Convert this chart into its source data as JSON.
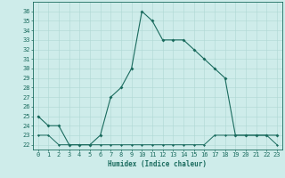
{
  "xlabel": "Humidex (Indice chaleur)",
  "bg_color": "#ceecea",
  "line_color": "#1a6b5e",
  "grid_color": "#aed8d4",
  "x_main": [
    0,
    1,
    2,
    3,
    4,
    5,
    6,
    7,
    8,
    9,
    10,
    11,
    12,
    13,
    14,
    15,
    16,
    17,
    18,
    19,
    20,
    21,
    22,
    23
  ],
  "y_main": [
    25,
    24,
    24,
    22,
    22,
    22,
    23,
    27,
    28,
    30,
    36,
    35,
    33,
    33,
    33,
    32,
    31,
    30,
    29,
    23,
    23,
    23,
    23,
    23
  ],
  "x_flat": [
    0,
    1,
    2,
    3,
    4,
    5,
    6,
    7,
    8,
    9,
    10,
    11,
    12,
    13,
    14,
    15,
    16,
    17,
    18,
    19,
    20,
    21,
    22,
    23
  ],
  "y_flat": [
    23,
    23,
    22,
    22,
    22,
    22,
    22,
    22,
    22,
    22,
    22,
    22,
    22,
    22,
    22,
    22,
    22,
    23,
    23,
    23,
    23,
    23,
    23,
    22
  ],
  "ylim": [
    21.5,
    37.0
  ],
  "xlim": [
    -0.5,
    23.5
  ],
  "yticks": [
    22,
    23,
    24,
    25,
    26,
    27,
    28,
    29,
    30,
    31,
    32,
    33,
    34,
    35,
    36
  ],
  "xticks": [
    0,
    1,
    2,
    3,
    4,
    5,
    6,
    7,
    8,
    9,
    10,
    11,
    12,
    13,
    14,
    15,
    16,
    17,
    18,
    19,
    20,
    21,
    22,
    23
  ],
  "tick_fontsize": 5.0,
  "xlabel_fontsize": 5.5,
  "marker_size_main": 2.0,
  "marker_size_flat": 1.5,
  "linewidth_main": 0.8,
  "linewidth_flat": 0.7
}
